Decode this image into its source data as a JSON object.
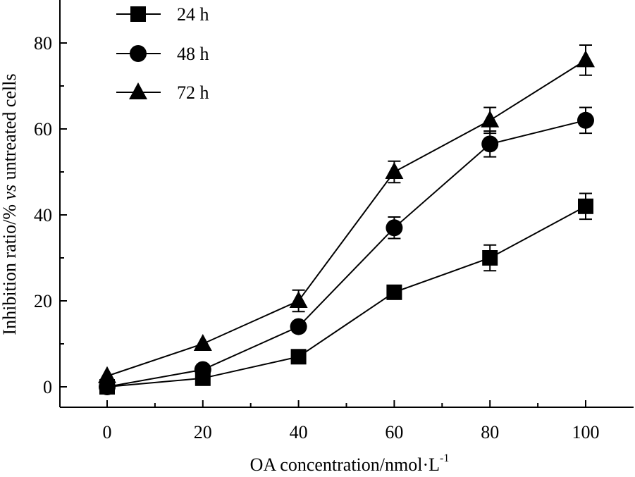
{
  "chart_data": {
    "type": "line",
    "title": "",
    "xlabel": "OA concentration/nmol·L",
    "xlabel_sup": "-1",
    "ylabel_parts": [
      "Inhibition ratio/% ",
      "vs",
      " untreated cells"
    ],
    "x": [
      0,
      20,
      40,
      60,
      80,
      100
    ],
    "xlim": [
      -10,
      110
    ],
    "ylim": [
      -5,
      90
    ],
    "xticks": [
      0,
      20,
      40,
      60,
      80,
      100
    ],
    "yticks": [
      0,
      20,
      40,
      60,
      80
    ],
    "legend_position": "top-left",
    "series": [
      {
        "name": "24 h",
        "marker": "square",
        "values": [
          0,
          2,
          7,
          22,
          30,
          42
        ],
        "errors": [
          0.5,
          0.5,
          0.8,
          1.0,
          3.0,
          3.0
        ]
      },
      {
        "name": "48 h",
        "marker": "circle",
        "values": [
          0,
          4,
          14,
          37,
          56.5,
          62
        ],
        "errors": [
          0.5,
          0.5,
          0.8,
          2.5,
          3.0,
          3.0
        ]
      },
      {
        "name": "72 h",
        "marker": "triangle",
        "values": [
          2.5,
          10,
          20,
          50,
          62,
          76
        ],
        "errors": [
          0.5,
          0.5,
          2.5,
          2.5,
          3.0,
          3.5
        ]
      }
    ]
  }
}
